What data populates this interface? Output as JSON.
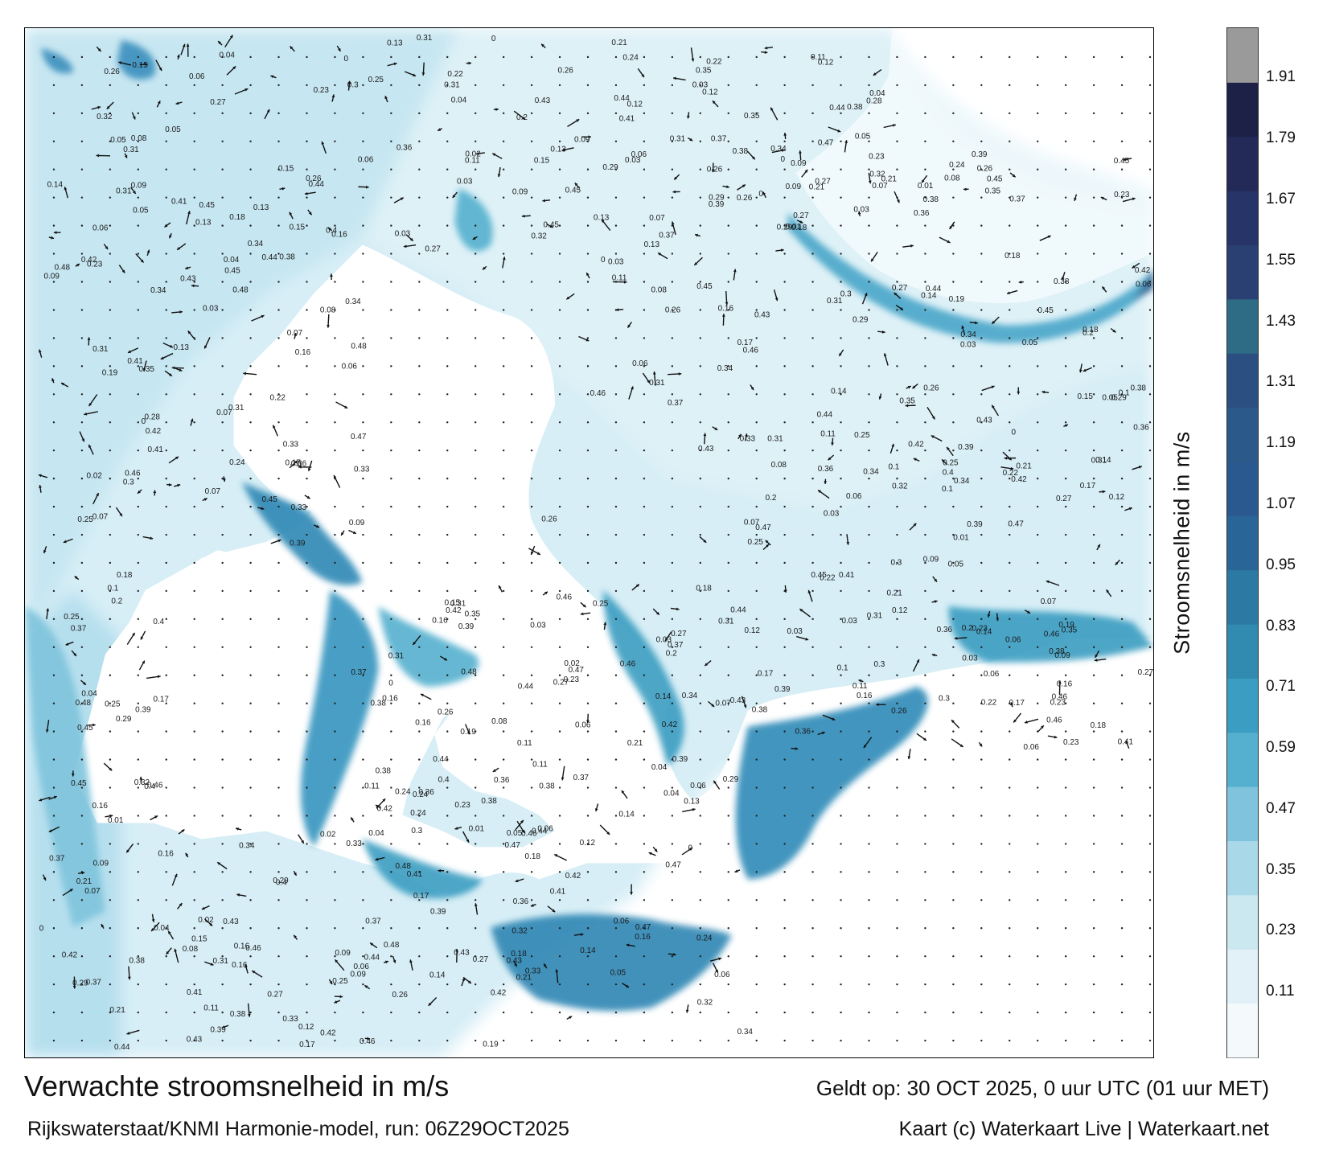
{
  "map": {
    "title": "Verwachte stroomsnelheid in m/s",
    "source": "Rijkswaterstaat/KNMI Harmonie-model, run: 06Z29OCT2025",
    "valid_time": "Geldt op: 30 OCT 2025, 0 uur UTC (01 uur MET)",
    "credit": "Kaart (c) Waterkaart Live | Waterkaart.net",
    "legend": {
      "title": "Stroomsnelheid in m/s",
      "ticks": [
        "1.91",
        "1.79",
        "1.67",
        "1.55",
        "1.43",
        "1.31",
        "1.19",
        "1.07",
        "0.95",
        "0.83",
        "0.71",
        "0.59",
        "0.47",
        "0.35",
        "0.23",
        "0.11"
      ],
      "colors": [
        "#f4fafc",
        "#e2f1f7",
        "#cbe7f0",
        "#a9d8e8",
        "#7fc4dc",
        "#55b0cf",
        "#3b9dc1",
        "#318ab0",
        "#2c7aa3",
        "#2a6597",
        "#2a5990",
        "#2b5a8a",
        "#2c4f81",
        "#2e6b85",
        "#2a3f72",
        "#273468",
        "#232a58",
        "#1e2147",
        "#9a9a9a"
      ]
    },
    "speed_labels": [
      "0.06",
      "0.05",
      "0.08",
      "0.07",
      "0.09",
      "0.11",
      "0.16",
      "0.12",
      "0.13",
      "0.15",
      "0.1",
      "0.14",
      "0.18",
      "0.17",
      "0.19",
      "0.21",
      "0.22",
      "0.2",
      "0.24",
      "0.25",
      "0.23",
      "0.26",
      "0.27",
      "0.29",
      "0.3",
      "0.31",
      "0.32",
      "0.33",
      "0.34",
      "0.35",
      "0.36",
      "0.37",
      "0.38",
      "0.39",
      "0.4",
      "0.41",
      "0.43",
      "0.44",
      "0.45",
      "0.46",
      "0.47",
      "0.48",
      "0.04",
      "0.03",
      "0.02",
      "0.01",
      "0",
      "0.28",
      "0.42"
    ]
  }
}
